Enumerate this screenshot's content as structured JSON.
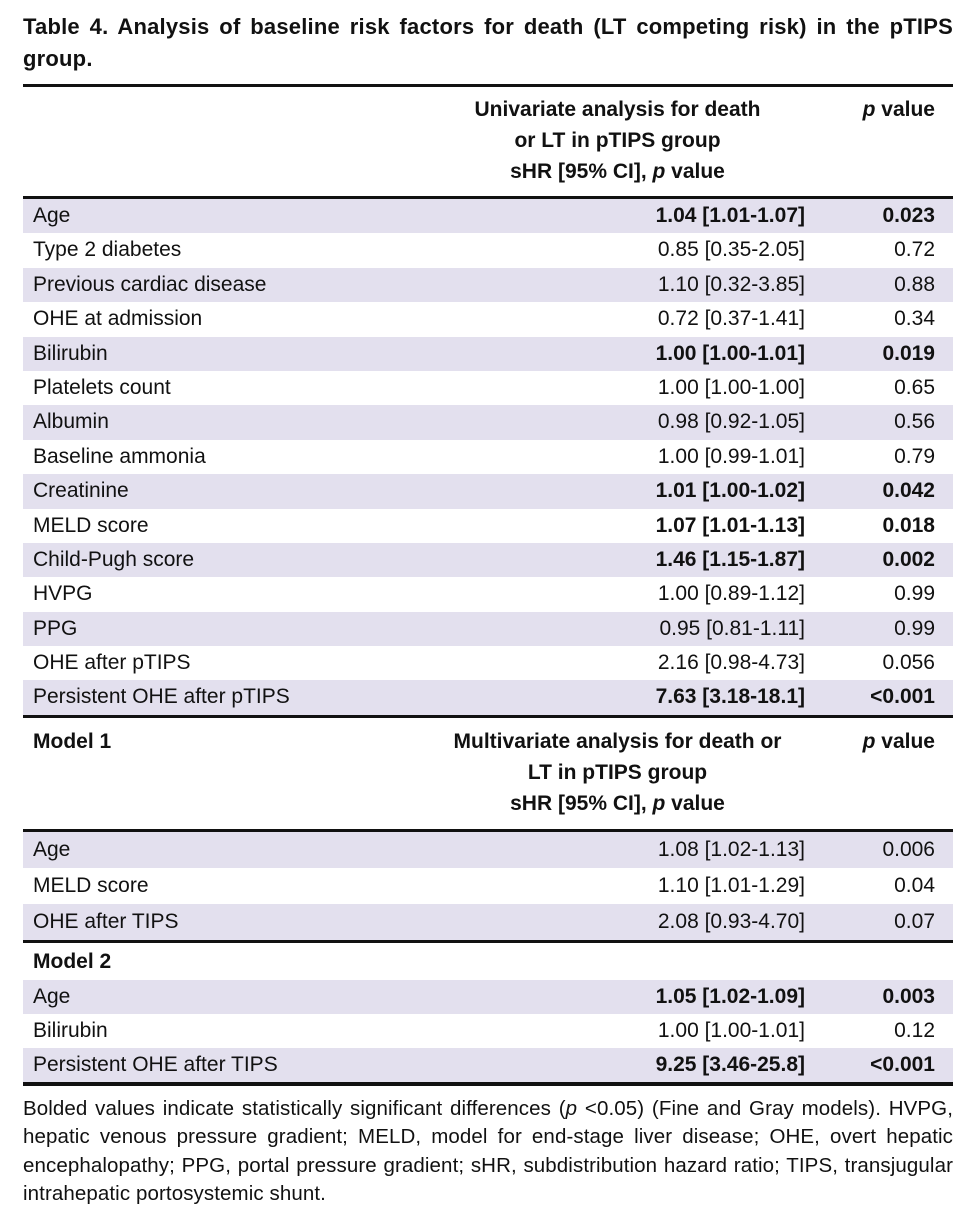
{
  "page": {
    "title": "Table 4. Analysis of baseline risk factors for death (LT competing risk) in the pTIPS group.",
    "footnote": "Bolded values indicate statistically significant differences (*p* <0.05) (Fine and Gray models). HVPG, hepatic venous pressure gradient; MELD, model for end-stage liver disease; OHE, overt hepatic encephalopathy; PPG, portal pressure gradient; sHR, subdistribution hazard ratio; TIPS, transjugular intrahepatic portosystemic shunt."
  },
  "colors": {
    "row_shade": "#e3e0ee",
    "rule": "#111111",
    "text": "#111111",
    "background": "#ffffff"
  },
  "sections": [
    {
      "name": "univariate",
      "header": {
        "label": "",
        "analysis_lines": [
          "Univariate analysis for death",
          "or LT in pTIPS group",
          "sHR [95% CI], *p* value"
        ],
        "p_label": "*p* value"
      },
      "rows": [
        {
          "label": "Age",
          "shr": "1.04 [1.01-1.07]",
          "p": "0.023",
          "bold": true
        },
        {
          "label": "Type 2 diabetes",
          "shr": "0.85 [0.35-2.05]",
          "p": "0.72",
          "bold": false
        },
        {
          "label": "Previous cardiac disease",
          "shr": "1.10 [0.32-3.85]",
          "p": "0.88",
          "bold": false
        },
        {
          "label": "OHE at admission",
          "shr": "0.72 [0.37-1.41]",
          "p": "0.34",
          "bold": false
        },
        {
          "label": "Bilirubin",
          "shr": "1.00 [1.00-1.01]",
          "p": "0.019",
          "bold": true
        },
        {
          "label": "Platelets count",
          "shr": "1.00 [1.00-1.00]",
          "p": "0.65",
          "bold": false
        },
        {
          "label": "Albumin",
          "shr": "0.98 [0.92-1.05]",
          "p": "0.56",
          "bold": false
        },
        {
          "label": "Baseline ammonia",
          "shr": "1.00 [0.99-1.01]",
          "p": "0.79",
          "bold": false
        },
        {
          "label": "Creatinine",
          "shr": "1.01 [1.00-1.02]",
          "p": "0.042",
          "bold": true
        },
        {
          "label": "MELD score",
          "shr": "1.07 [1.01-1.13]",
          "p": "0.018",
          "bold": true
        },
        {
          "label": "Child-Pugh score",
          "shr": "1.46 [1.15-1.87]",
          "p": "0.002",
          "bold": true
        },
        {
          "label": "HVPG",
          "shr": "1.00 [0.89-1.12]",
          "p": "0.99",
          "bold": false
        },
        {
          "label": "PPG",
          "shr": "0.95 [0.81-1.11]",
          "p": "0.99",
          "bold": false
        },
        {
          "label": "OHE after pTIPS",
          "shr": "2.16 [0.98-4.73]",
          "p": "0.056",
          "bold": false
        },
        {
          "label": "Persistent OHE after pTIPS",
          "shr": "7.63 [3.18-18.1]",
          "p": "<0.001",
          "bold": true
        }
      ]
    },
    {
      "name": "model-1",
      "header": {
        "label": "Model 1",
        "analysis_lines": [
          "Multivariate analysis for death or",
          "LT in pTIPS group",
          "sHR [95% CI], *p* value"
        ],
        "p_label": "*p* value"
      },
      "rows": [
        {
          "label": "Age",
          "shr": "1.08 [1.02-1.13]",
          "p": "0.006",
          "bold": false
        },
        {
          "label": "MELD score",
          "shr": "1.10 [1.01-1.29]",
          "p": "0.04",
          "bold": false
        },
        {
          "label": "OHE after TIPS",
          "shr": "2.08 [0.93-4.70]",
          "p": "0.07",
          "bold": false
        }
      ]
    },
    {
      "name": "model-2",
      "header": {
        "label": "Model 2",
        "analysis_lines": [],
        "p_label": ""
      },
      "rows": [
        {
          "label": "Age",
          "shr": "1.05 [1.02-1.09]",
          "p": "0.003",
          "bold": true
        },
        {
          "label": "Bilirubin",
          "shr": "1.00 [1.00-1.01]",
          "p": "0.12",
          "bold": false
        },
        {
          "label": "Persistent OHE after TIPS",
          "shr": "9.25 [3.46-25.8]",
          "p": "<0.001",
          "bold": true
        }
      ]
    }
  ]
}
